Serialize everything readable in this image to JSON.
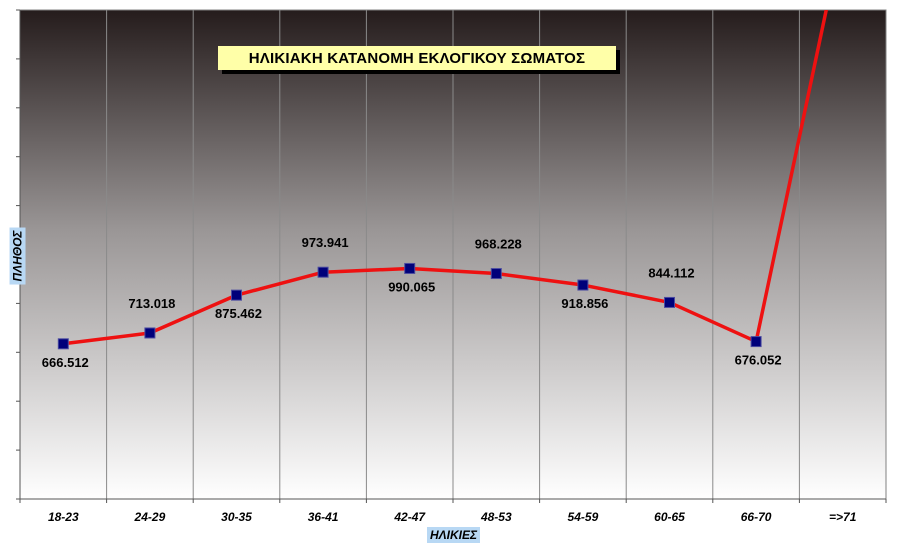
{
  "chart_data": {
    "type": "line",
    "title": "ΗΛΙΚΙΑΚΗ ΚΑΤΑΝΟΜΗ ΕΚΛΟΓΙΚΟΥ ΣΩΜΑΤΟΣ",
    "xlabel": "ΗΛΙΚΙΕΣ",
    "ylabel": "ΠΛΗΘΟΣ",
    "categories": [
      "18-23",
      "24-29",
      "30-35",
      "36-41",
      "42-47",
      "48-53",
      "54-59",
      "60-65",
      "66-70",
      "=>71"
    ],
    "values": [
      666512,
      713018,
      875462,
      973941,
      990065,
      968228,
      918856,
      844112,
      676052,
      null
    ],
    "value_labels": [
      "666.512",
      "713.018",
      "875.462",
      "973.941",
      "990.065",
      "968.228",
      "918.856",
      "844.112",
      "676.052",
      ""
    ],
    "ylim": [
      0,
      2100000
    ],
    "grid": {
      "vertical": true,
      "horizontal": false
    },
    "line_color": "#ee1111",
    "marker_color": "#00007a",
    "background_gradient": [
      "#2a2020",
      "#ffffff"
    ],
    "legend": "none"
  }
}
